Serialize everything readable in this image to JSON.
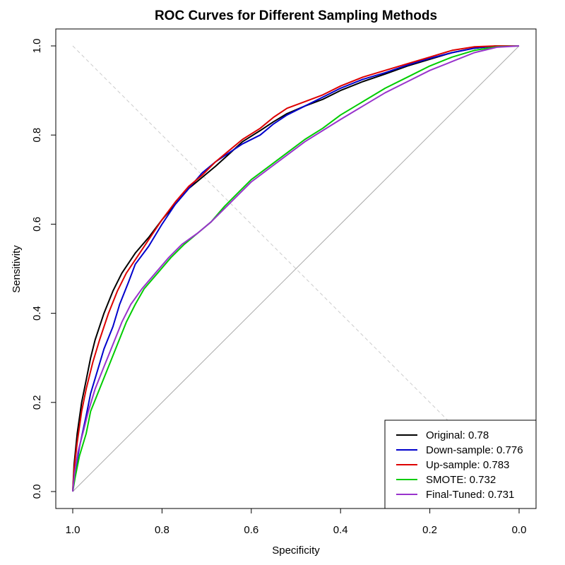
{
  "chart_data": {
    "type": "line",
    "title": "ROC Curves for Different Sampling Methods",
    "xlabel": "Specificity",
    "ylabel": "Sensitivity",
    "xlim": [
      1.0,
      0.0
    ],
    "ylim": [
      0.0,
      1.0
    ],
    "x_reversed": true,
    "xticks": [
      "1.0",
      "0.8",
      "0.6",
      "0.4",
      "0.2",
      "0.0"
    ],
    "yticks": [
      "0.0",
      "0.2",
      "0.4",
      "0.6",
      "0.8",
      "1.0"
    ],
    "grid": false,
    "legend_position": "bottom-right",
    "reference_lines": [
      {
        "name": "chance",
        "color": "#aaaaaa",
        "style": "solid",
        "points": [
          [
            1.0,
            0.0
          ],
          [
            0.0,
            1.0
          ]
        ]
      },
      {
        "name": "diagonal",
        "color": "#cccccc",
        "style": "dashed",
        "points": [
          [
            1.0,
            1.0
          ],
          [
            0.0,
            0.0
          ]
        ]
      }
    ],
    "series": [
      {
        "name": "Original: 0.78",
        "color": "#000000",
        "points": [
          [
            1.0,
            0.0
          ],
          [
            0.997,
            0.06
          ],
          [
            0.99,
            0.13
          ],
          [
            0.98,
            0.2
          ],
          [
            0.97,
            0.25
          ],
          [
            0.96,
            0.3
          ],
          [
            0.95,
            0.34
          ],
          [
            0.93,
            0.4
          ],
          [
            0.91,
            0.45
          ],
          [
            0.89,
            0.49
          ],
          [
            0.86,
            0.535
          ],
          [
            0.83,
            0.57
          ],
          [
            0.8,
            0.61
          ],
          [
            0.77,
            0.645
          ],
          [
            0.74,
            0.68
          ],
          [
            0.71,
            0.705
          ],
          [
            0.68,
            0.73
          ],
          [
            0.65,
            0.757
          ],
          [
            0.62,
            0.785
          ],
          [
            0.58,
            0.81
          ],
          [
            0.55,
            0.83
          ],
          [
            0.52,
            0.848
          ],
          [
            0.48,
            0.865
          ],
          [
            0.44,
            0.88
          ],
          [
            0.4,
            0.9
          ],
          [
            0.35,
            0.92
          ],
          [
            0.3,
            0.937
          ],
          [
            0.25,
            0.955
          ],
          [
            0.2,
            0.97
          ],
          [
            0.15,
            0.985
          ],
          [
            0.1,
            0.995
          ],
          [
            0.05,
            1.0
          ],
          [
            0.0,
            1.0
          ]
        ]
      },
      {
        "name": "Down-sample: 0.776",
        "color": "#0000cc",
        "points": [
          [
            1.0,
            0.0
          ],
          [
            0.995,
            0.04
          ],
          [
            0.985,
            0.1
          ],
          [
            0.97,
            0.17
          ],
          [
            0.96,
            0.22
          ],
          [
            0.945,
            0.27
          ],
          [
            0.93,
            0.32
          ],
          [
            0.91,
            0.37
          ],
          [
            0.895,
            0.42
          ],
          [
            0.875,
            0.47
          ],
          [
            0.86,
            0.51
          ],
          [
            0.83,
            0.55
          ],
          [
            0.8,
            0.6
          ],
          [
            0.77,
            0.645
          ],
          [
            0.74,
            0.68
          ],
          [
            0.71,
            0.715
          ],
          [
            0.68,
            0.74
          ],
          [
            0.65,
            0.76
          ],
          [
            0.62,
            0.78
          ],
          [
            0.58,
            0.8
          ],
          [
            0.55,
            0.825
          ],
          [
            0.52,
            0.845
          ],
          [
            0.48,
            0.865
          ],
          [
            0.44,
            0.885
          ],
          [
            0.4,
            0.905
          ],
          [
            0.35,
            0.925
          ],
          [
            0.3,
            0.94
          ],
          [
            0.25,
            0.957
          ],
          [
            0.2,
            0.972
          ],
          [
            0.15,
            0.985
          ],
          [
            0.1,
            0.995
          ],
          [
            0.05,
            1.0
          ],
          [
            0.0,
            1.0
          ]
        ]
      },
      {
        "name": "Up-sample: 0.783",
        "color": "#dd0000",
        "points": [
          [
            1.0,
            0.0
          ],
          [
            0.997,
            0.05
          ],
          [
            0.99,
            0.11
          ],
          [
            0.98,
            0.18
          ],
          [
            0.97,
            0.23
          ],
          [
            0.955,
            0.29
          ],
          [
            0.94,
            0.34
          ],
          [
            0.92,
            0.4
          ],
          [
            0.9,
            0.45
          ],
          [
            0.88,
            0.49
          ],
          [
            0.85,
            0.535
          ],
          [
            0.82,
            0.58
          ],
          [
            0.8,
            0.61
          ],
          [
            0.77,
            0.65
          ],
          [
            0.74,
            0.685
          ],
          [
            0.71,
            0.71
          ],
          [
            0.68,
            0.74
          ],
          [
            0.65,
            0.765
          ],
          [
            0.62,
            0.79
          ],
          [
            0.58,
            0.815
          ],
          [
            0.55,
            0.84
          ],
          [
            0.52,
            0.86
          ],
          [
            0.48,
            0.875
          ],
          [
            0.44,
            0.89
          ],
          [
            0.4,
            0.91
          ],
          [
            0.35,
            0.93
          ],
          [
            0.3,
            0.945
          ],
          [
            0.25,
            0.96
          ],
          [
            0.2,
            0.975
          ],
          [
            0.15,
            0.99
          ],
          [
            0.1,
            0.998
          ],
          [
            0.05,
            1.0
          ],
          [
            0.0,
            1.0
          ]
        ]
      },
      {
        "name": "SMOTE: 0.732",
        "color": "#00cc00",
        "points": [
          [
            1.0,
            0.0
          ],
          [
            0.995,
            0.03
          ],
          [
            0.985,
            0.08
          ],
          [
            0.97,
            0.13
          ],
          [
            0.96,
            0.18
          ],
          [
            0.94,
            0.23
          ],
          [
            0.92,
            0.28
          ],
          [
            0.9,
            0.33
          ],
          [
            0.88,
            0.38
          ],
          [
            0.86,
            0.42
          ],
          [
            0.84,
            0.455
          ],
          [
            0.81,
            0.49
          ],
          [
            0.78,
            0.525
          ],
          [
            0.75,
            0.555
          ],
          [
            0.72,
            0.58
          ],
          [
            0.69,
            0.605
          ],
          [
            0.66,
            0.64
          ],
          [
            0.63,
            0.67
          ],
          [
            0.6,
            0.7
          ],
          [
            0.56,
            0.73
          ],
          [
            0.52,
            0.76
          ],
          [
            0.48,
            0.79
          ],
          [
            0.44,
            0.815
          ],
          [
            0.4,
            0.845
          ],
          [
            0.35,
            0.875
          ],
          [
            0.3,
            0.905
          ],
          [
            0.25,
            0.93
          ],
          [
            0.2,
            0.955
          ],
          [
            0.15,
            0.975
          ],
          [
            0.1,
            0.99
          ],
          [
            0.05,
            0.998
          ],
          [
            0.0,
            1.0
          ]
        ]
      },
      {
        "name": "Final-Tuned: 0.731",
        "color": "#9933cc",
        "points": [
          [
            1.0,
            0.0
          ],
          [
            0.996,
            0.04
          ],
          [
            0.988,
            0.09
          ],
          [
            0.975,
            0.14
          ],
          [
            0.965,
            0.18
          ],
          [
            0.95,
            0.23
          ],
          [
            0.93,
            0.28
          ],
          [
            0.91,
            0.33
          ],
          [
            0.89,
            0.38
          ],
          [
            0.87,
            0.42
          ],
          [
            0.845,
            0.455
          ],
          [
            0.815,
            0.49
          ],
          [
            0.785,
            0.525
          ],
          [
            0.755,
            0.555
          ],
          [
            0.72,
            0.58
          ],
          [
            0.69,
            0.605
          ],
          [
            0.66,
            0.635
          ],
          [
            0.63,
            0.665
          ],
          [
            0.6,
            0.695
          ],
          [
            0.56,
            0.725
          ],
          [
            0.52,
            0.755
          ],
          [
            0.48,
            0.785
          ],
          [
            0.44,
            0.81
          ],
          [
            0.4,
            0.835
          ],
          [
            0.35,
            0.865
          ],
          [
            0.3,
            0.895
          ],
          [
            0.25,
            0.92
          ],
          [
            0.2,
            0.945
          ],
          [
            0.15,
            0.965
          ],
          [
            0.1,
            0.985
          ],
          [
            0.05,
            0.997
          ],
          [
            0.0,
            1.0
          ]
        ]
      }
    ]
  }
}
